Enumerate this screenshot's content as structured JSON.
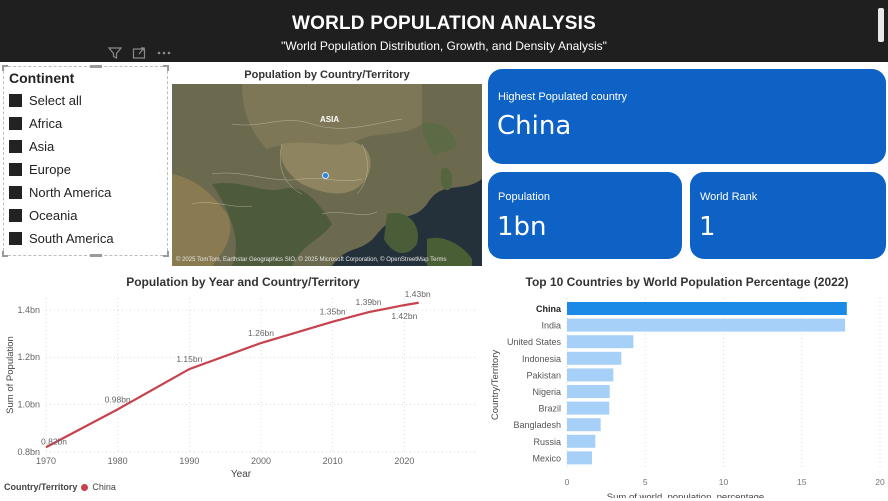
{
  "header": {
    "title": "WORLD POPULATION ANALYSIS",
    "subtitle": "\"World Population Distribution, Growth, and Density Analysis\""
  },
  "toolbar": {
    "icons": [
      "filter-icon",
      "focus-mode-icon",
      "more-options-icon"
    ]
  },
  "slicer": {
    "title": "Continent",
    "items": [
      {
        "label": "Select all"
      },
      {
        "label": "Africa"
      },
      {
        "label": "Asia"
      },
      {
        "label": "Europe"
      },
      {
        "label": "North America"
      },
      {
        "label": "Oceania"
      },
      {
        "label": "South America"
      }
    ]
  },
  "map": {
    "title": "Population by Country/Territory",
    "region_label": "ASIA",
    "credit": "© 2025 TomTom, Earthstar Geographics SIO, © 2025 Microsoft Corporation, © OpenStreetMap  Terms"
  },
  "cards": {
    "highest": {
      "label": "Highest Populated country",
      "value": "China"
    },
    "population": {
      "label": "Population",
      "value": "1bn"
    },
    "rank": {
      "label": "World Rank",
      "value": "1"
    }
  },
  "colors": {
    "accent": "#0e62c6",
    "line": "#c8424e",
    "bar": "#a6d0f7",
    "bar_highlight": "#1a8ae6",
    "header_bg": "#1f1f1f"
  },
  "legend": {
    "label": "Country/Territory",
    "series": "China"
  },
  "chart_data": [
    {
      "type": "line",
      "title": "Population by Year and Country/Territory",
      "xlabel": "Year",
      "ylabel": "Sum of Population",
      "x": [
        1970,
        1980,
        1990,
        2000,
        2010,
        2015,
        2020,
        2022
      ],
      "series": [
        {
          "name": "China",
          "values": [
            0.82,
            0.98,
            1.15,
            1.26,
            1.35,
            1.39,
            1.42,
            1.43
          ],
          "labels": [
            "0.82bn",
            "0.98bn",
            "1.15bn",
            "1.26bn",
            "1.35bn",
            "1.39bn",
            "1.42bn",
            "1.43bn"
          ]
        }
      ],
      "xticks": [
        1970,
        1980,
        1990,
        2000,
        2010,
        2020
      ],
      "yticks": [
        0.8,
        1.0,
        1.2,
        1.4
      ],
      "ytick_labels": [
        "0.8bn",
        "1.0bn",
        "1.2bn",
        "1.4bn"
      ],
      "xlim": [
        1970,
        2030
      ],
      "ylim": [
        0.8,
        1.45
      ],
      "grid": true
    },
    {
      "type": "bar",
      "orientation": "horizontal",
      "title": "Top 10 Countries by World Population Percentage (2022)",
      "xlabel": "Sum of world_population_percentage",
      "ylabel": "Country/Territory",
      "categories": [
        "China",
        "India",
        "United States",
        "Indonesia",
        "Pakistan",
        "Nigeria",
        "Brazil",
        "Bangladesh",
        "Russia",
        "Mexico"
      ],
      "values": [
        17.88,
        17.77,
        4.24,
        3.47,
        2.96,
        2.73,
        2.7,
        2.15,
        1.81,
        1.6
      ],
      "xticks": [
        0,
        5,
        10,
        15,
        20
      ],
      "xlim": [
        0,
        20
      ],
      "highlight": "China"
    }
  ]
}
